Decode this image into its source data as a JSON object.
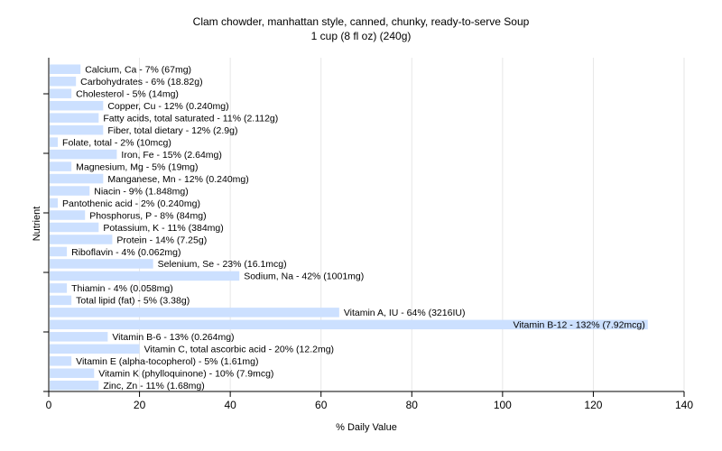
{
  "chart_data": {
    "type": "bar",
    "orientation": "horizontal",
    "title": "Clam chowder, manhattan style, canned, chunky, ready-to-serve Soup",
    "subtitle": "1 cup (8 fl oz) (240g)",
    "xlabel": "% Daily Value",
    "ylabel": "Nutrient",
    "xlim": [
      0,
      140
    ],
    "xticks": [
      0,
      20,
      40,
      60,
      80,
      100,
      120,
      140
    ],
    "grid": true,
    "bar_color": "#cce0ff",
    "categories": [
      "Calcium, Ca",
      "Carbohydrates",
      "Cholesterol",
      "Copper, Cu",
      "Fatty acids, total saturated",
      "Fiber, total dietary",
      "Folate, total",
      "Iron, Fe",
      "Magnesium, Mg",
      "Manganese, Mn",
      "Niacin",
      "Pantothenic acid",
      "Phosphorus, P",
      "Potassium, K",
      "Protein",
      "Riboflavin",
      "Selenium, Se",
      "Sodium, Na",
      "Thiamin",
      "Total lipid (fat)",
      "Vitamin A, IU",
      "Vitamin B-12",
      "Vitamin B-6",
      "Vitamin C, total ascorbic acid",
      "Vitamin E (alpha-tocopherol)",
      "Vitamin K (phylloquinone)",
      "Zinc, Zn"
    ],
    "values": [
      7,
      6,
      5,
      12,
      11,
      12,
      2,
      15,
      5,
      12,
      9,
      2,
      8,
      11,
      14,
      4,
      23,
      42,
      4,
      5,
      64,
      132,
      13,
      20,
      5,
      10,
      11
    ],
    "labels": [
      "Calcium, Ca - 7% (67mg)",
      "Carbohydrates - 6% (18.82g)",
      "Cholesterol - 5% (14mg)",
      "Copper, Cu - 12% (0.240mg)",
      "Fatty acids, total saturated - 11% (2.112g)",
      "Fiber, total dietary - 12% (2.9g)",
      "Folate, total - 2% (10mcg)",
      "Iron, Fe - 15% (2.64mg)",
      "Magnesium, Mg - 5% (19mg)",
      "Manganese, Mn - 12% (0.240mg)",
      "Niacin - 9% (1.848mg)",
      "Pantothenic acid - 2% (0.240mg)",
      "Phosphorus, P - 8% (84mg)",
      "Potassium, K - 11% (384mg)",
      "Protein - 14% (7.25g)",
      "Riboflavin - 4% (0.062mg)",
      "Selenium, Se - 23% (16.1mcg)",
      "Sodium, Na - 42% (1001mg)",
      "Thiamin - 4% (0.058mg)",
      "Total lipid (fat) - 5% (3.38g)",
      "Vitamin A, IU - 64% (3216IU)",
      "Vitamin B-12 - 132% (7.92mcg)",
      "Vitamin B-6 - 13% (0.264mg)",
      "Vitamin C, total ascorbic acid - 20% (12.2mg)",
      "Vitamin E (alpha-tocopherol) - 5% (1.61mg)",
      "Vitamin K (phylloquinone) - 10% (7.9mcg)",
      "Zinc, Zn - 11% (1.68mg)"
    ]
  }
}
